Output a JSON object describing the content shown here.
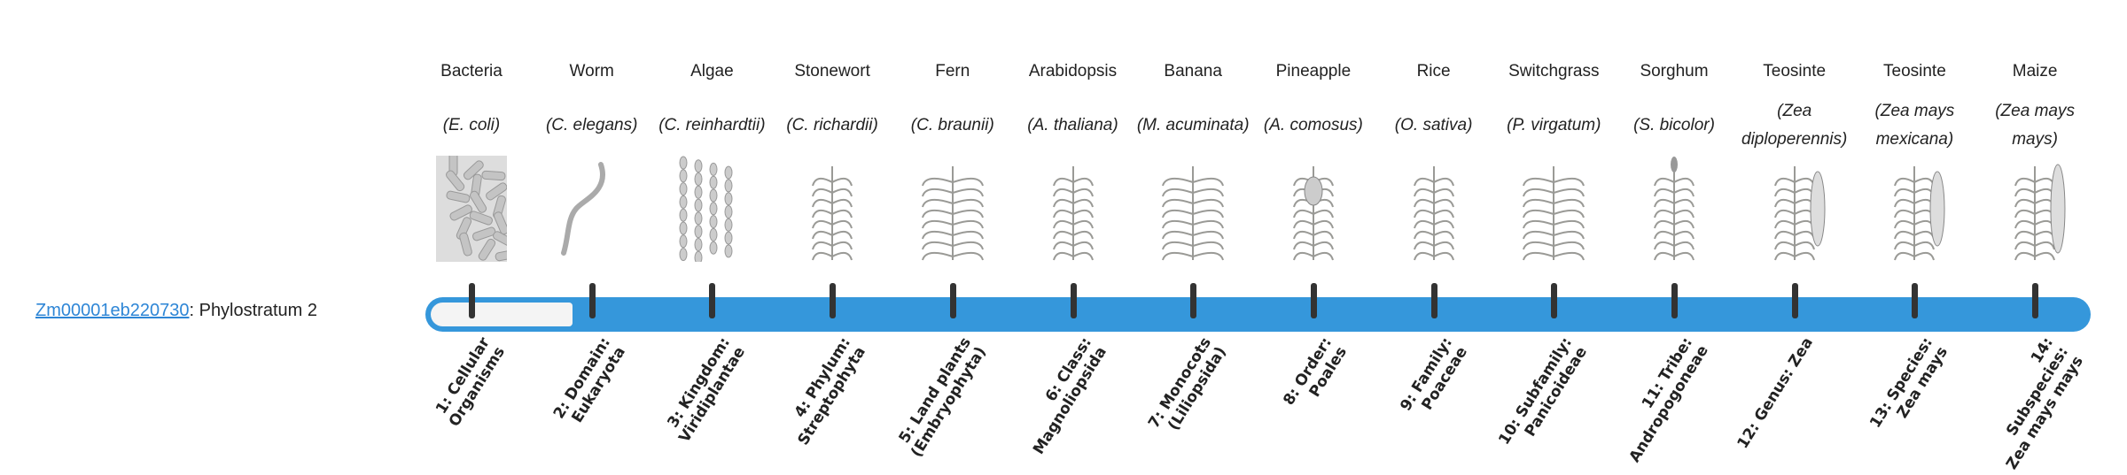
{
  "gene": {
    "id": "Zm00001eb220730",
    "suffix": ": Phylostratum 2"
  },
  "current_stratum": 2,
  "total_strata": 14,
  "colors": {
    "bar": "#3597db",
    "link": "#2e86d6",
    "tick": "#333333"
  },
  "organisms": [
    {
      "name": "Bacteria",
      "sci": "(E. coli)",
      "icon": "bacteria"
    },
    {
      "name": "Worm",
      "sci": "(C. elegans)",
      "icon": "worm"
    },
    {
      "name": "Algae",
      "sci": "(C. reinhardtii)",
      "icon": "algae"
    },
    {
      "name": "Stonewort",
      "sci": "(C. richardii)",
      "icon": "stonewort"
    },
    {
      "name": "Fern",
      "sci": "(C. braunii)",
      "icon": "fern"
    },
    {
      "name": "Arabidopsis",
      "sci": "(A. thaliana)",
      "icon": "arabidopsis"
    },
    {
      "name": "Banana",
      "sci": "(M. acuminata)",
      "icon": "banana"
    },
    {
      "name": "Pineapple",
      "sci": "(A. comosus)",
      "icon": "pineapple"
    },
    {
      "name": "Rice",
      "sci": "(O. sativa)",
      "icon": "rice"
    },
    {
      "name": "Switchgrass",
      "sci": "(P. virgatum)",
      "icon": "switchgrass"
    },
    {
      "name": "Sorghum",
      "sci": "(S. bicolor)",
      "icon": "sorghum"
    },
    {
      "name": "Teosinte",
      "sci": "(Zea diploperennis)",
      "icon": "teosinte"
    },
    {
      "name": "Teosinte",
      "sci": "(Zea mays mexicana)",
      "icon": "teosinte"
    },
    {
      "name": "Maize",
      "sci": "(Zea mays mays)",
      "icon": "maize"
    }
  ],
  "strata": [
    "1: Cellular Organisms",
    "2: Domain: Eukaryota",
    "3: Kingdom: Viridiplantae",
    "4: Phylum: Streptophyta",
    "5: Land plants (Embryophyta)",
    "6: Class: Magnoliopsida",
    "7: Monocots (Liliopsida)",
    "8: Order: Poales",
    "9: Family: Poaceae",
    "10: Subfamily: Panicoideae",
    "11: Tribe: Andropogoneae",
    "12: Genus: Zea",
    "13: Species: Zea mays",
    "14: Subspecies: Zea mays mays"
  ]
}
